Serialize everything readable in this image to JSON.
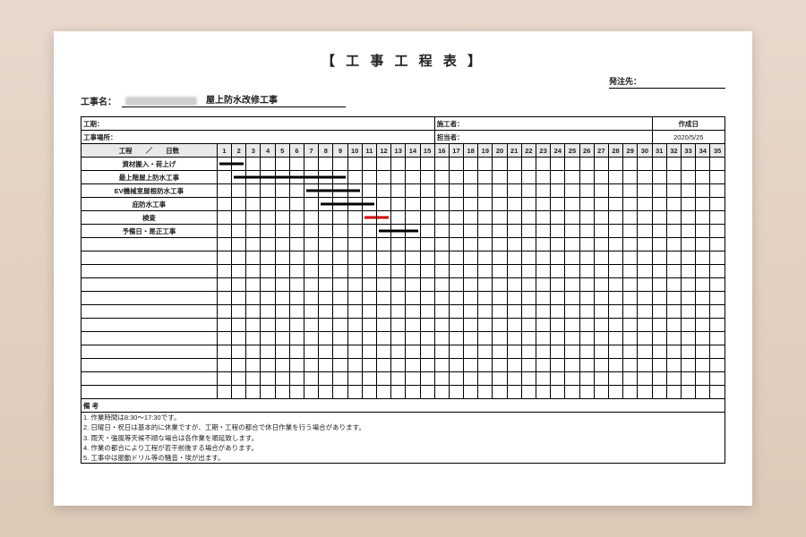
{
  "title": "【 工 事 工 程 表 】",
  "orderer_label": "発注先：",
  "project": {
    "label": "工事名：",
    "name": "屋上防水改修工事"
  },
  "info": {
    "period_label": "工期：",
    "place_label": "工事場所：",
    "contractor_label": "施工者：",
    "manager_label": "担当者：",
    "created_label": "作成日",
    "created_date": "2020/5/25"
  },
  "schedule": {
    "task_head": "工程　　／　　日数",
    "days": 35,
    "tasks": [
      {
        "name": "資材搬入・荷上げ",
        "start": 1,
        "end": 2,
        "color": "#000000"
      },
      {
        "name": "最上階屋上防水工事",
        "start": 2,
        "end": 9,
        "color": "#000000"
      },
      {
        "name": "EV機械室屋根防水工事",
        "start": 7,
        "end": 10,
        "color": "#000000"
      },
      {
        "name": "庇防水工事",
        "start": 8,
        "end": 11,
        "color": "#000000"
      },
      {
        "name": "検査",
        "start": 11,
        "end": 12,
        "color": "#d20000"
      },
      {
        "name": "予備日・是正工事",
        "start": 12,
        "end": 14,
        "color": "#000000"
      }
    ],
    "empty_rows": 12,
    "colors": {
      "head_bg": "#e9e9e9",
      "grid": "#000000"
    }
  },
  "notes": {
    "heading": "備 考",
    "items": [
      "1. 作業時間は8:30〜17:30です。",
      "2. 日曜日・祝日は基本的に休業ですが、工期・工程の都合で休日作業を行う場合があります。",
      "3. 雨天・強風等天候不順な場合は各作業を順延致します。",
      "4. 作業の都合により工程が若干前後する場合があります。",
      "5. 工事中は振動ドリル等の騒音・埃が出ます。"
    ]
  }
}
